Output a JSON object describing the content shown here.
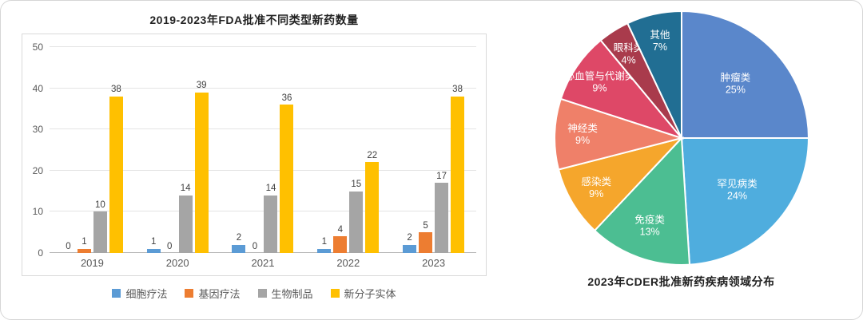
{
  "chart_data": [
    {
      "type": "bar",
      "title": "2019-2023年FDA批准不同类型新药数量",
      "categories": [
        "2019",
        "2020",
        "2021",
        "2022",
        "2023"
      ],
      "series": [
        {
          "name": "细胞疗法",
          "color": "#5B9BD5",
          "values": [
            0,
            1,
            2,
            1,
            2
          ]
        },
        {
          "name": "基因疗法",
          "color": "#ED7D31",
          "values": [
            1,
            0,
            0,
            4,
            5
          ]
        },
        {
          "name": "生物制品",
          "color": "#A5A5A5",
          "values": [
            10,
            14,
            14,
            15,
            17
          ]
        },
        {
          "name": "新分子实体",
          "color": "#FFC000",
          "values": [
            38,
            39,
            36,
            22,
            38
          ]
        }
      ],
      "ylim": [
        0,
        50
      ],
      "yticks": [
        0,
        10,
        20,
        30,
        40,
        50
      ],
      "grid": true,
      "legend_position": "bottom"
    },
    {
      "type": "pie",
      "title": "2023年CDER批准新药疾病领域分布",
      "start_angle_deg": 0,
      "direction": "clockwise",
      "slices": [
        {
          "label": "肿瘤类",
          "pct": 25,
          "color": "#5A87CB"
        },
        {
          "label": "罕见病类",
          "pct": 24,
          "color": "#4FADDE"
        },
        {
          "label": "免疫类",
          "pct": 13,
          "color": "#4CBE92"
        },
        {
          "label": "感染类",
          "pct": 9,
          "color": "#F5A62C"
        },
        {
          "label": "神经类",
          "pct": 9,
          "color": "#EF8069"
        },
        {
          "label": "心血管与代谢类",
          "pct": 9,
          "color": "#DE4867"
        },
        {
          "label": "眼科类",
          "pct": 4,
          "color": "#A93B4C"
        },
        {
          "label": "其他",
          "pct": 7,
          "color": "#216E93"
        }
      ]
    }
  ]
}
